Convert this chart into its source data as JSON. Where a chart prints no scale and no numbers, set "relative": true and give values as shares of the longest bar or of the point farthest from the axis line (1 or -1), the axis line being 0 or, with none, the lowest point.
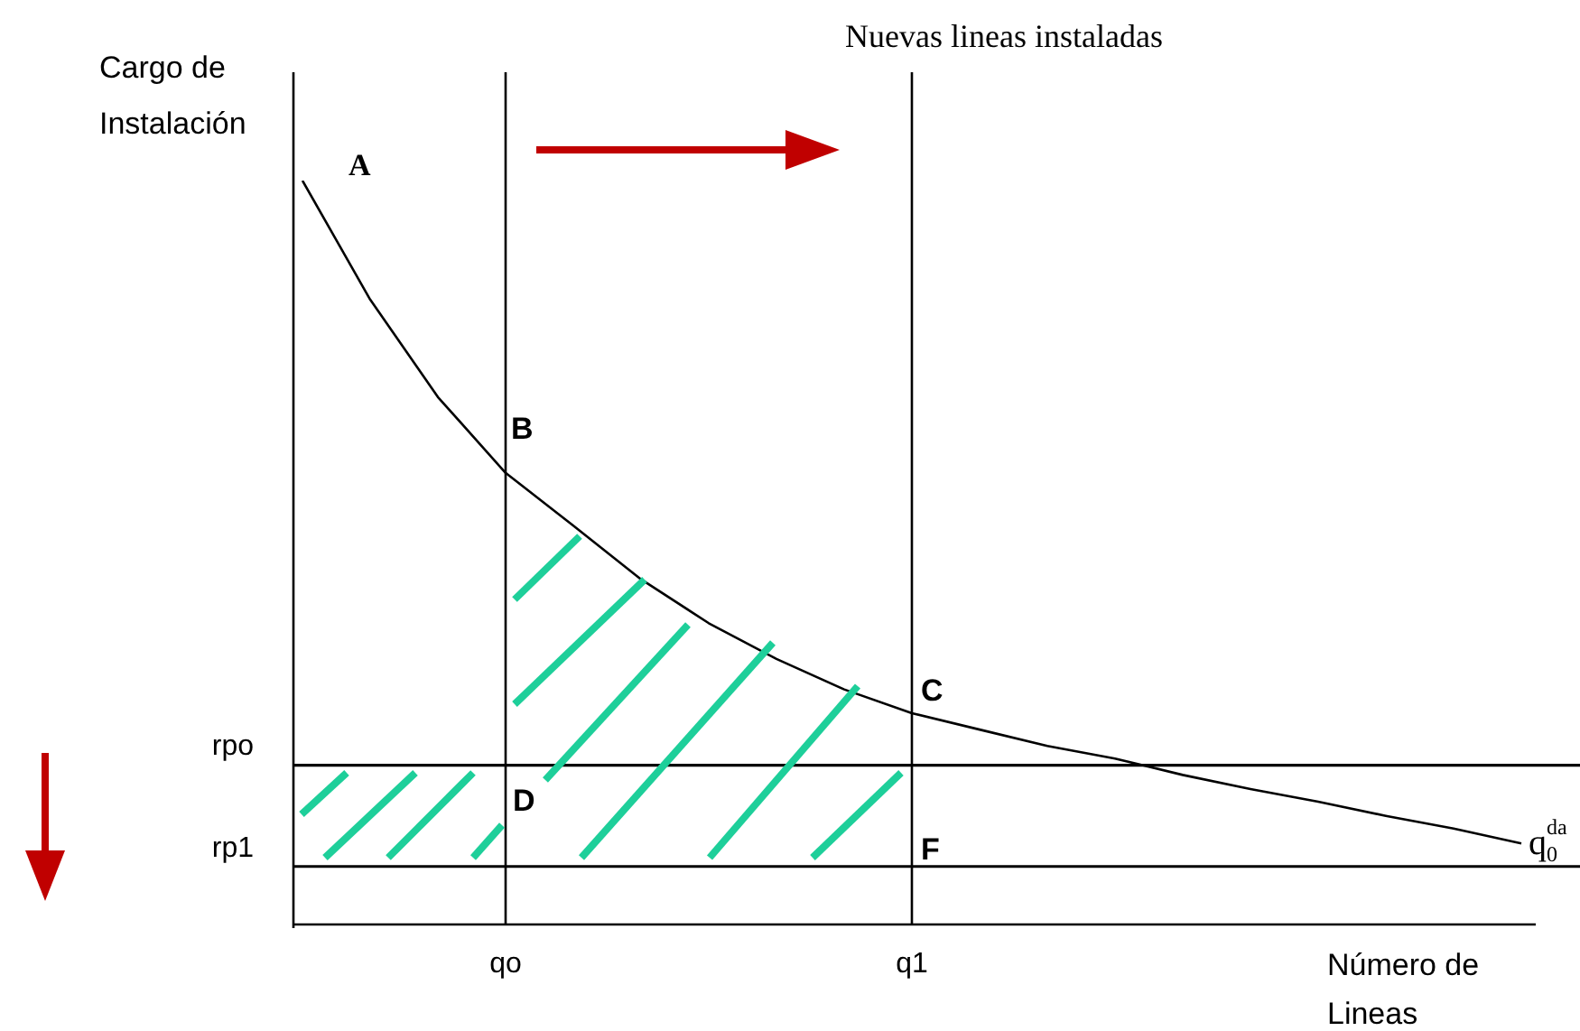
{
  "chart_data": {
    "type": "line",
    "title": "Nuevas lineas instaladas",
    "ylabel": "Cargo de Instalación",
    "xlabel": "Número de Lineas",
    "relative": true,
    "legend": false,
    "grid": false,
    "marker": "none",
    "line_style": "solid",
    "tick_labels": "x",
    "categories": [
      null,
      null,
      null,
      "qo",
      null,
      null,
      null,
      null,
      null,
      "q1",
      null,
      null,
      null,
      null,
      null,
      null,
      null,
      null,
      null
    ],
    "series": [
      {
        "name": "q$_{0}$$^{da}$",
        "color": "#000000",
        "values": [
          1,
          0.84,
          0.709,
          0.607,
          0.536,
          0.464,
          0.405,
          0.357,
          0.316,
          0.284,
          0.262,
          0.24,
          0.223,
          0.201,
          0.182,
          0.165,
          0.146,
          0.129,
          0.109
        ]
      }
    ],
    "ref_lines": [
      {
        "axis": "x",
        "value": "qo",
        "color": "#000000"
      },
      {
        "axis": "x",
        "value": "q1",
        "color": "#000000"
      },
      {
        "axis": "y",
        "value": 0.214,
        "label": "rpo",
        "color": "#000000"
      },
      {
        "axis": "y",
        "value": 0.078,
        "label": "rp1",
        "color": "#000000"
      }
    ],
    "annotations": [
      "A",
      "B",
      "C",
      "D",
      "F"
    ]
  }
}
